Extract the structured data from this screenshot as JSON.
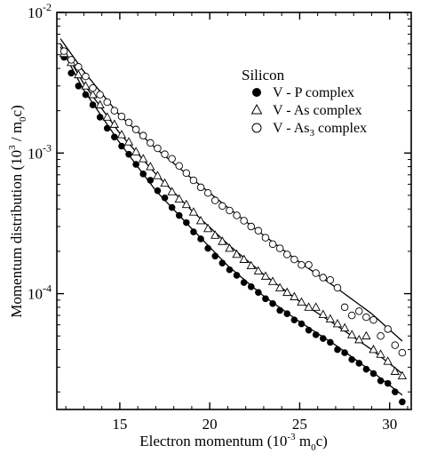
{
  "chart_data": {
    "type": "scatter",
    "xlabel": "Electron momentum (10",
    "xlabel_sup": "-3",
    "xlabel_tail": " m",
    "xlabel_sub": "0",
    "xlabel_end": "c)",
    "ylabel": "Momentum distribution (10",
    "ylabel_sup": "3",
    "ylabel_mid": " / m",
    "ylabel_sub": "0",
    "ylabel_end": "c)",
    "xlim": [
      11.5,
      31.2
    ],
    "ylim_log": [
      1.5e-05,
      0.01
    ],
    "yscale": "log",
    "x_ticks": [
      15,
      20,
      25,
      30
    ],
    "x_tick_labels": [
      "15",
      "20",
      "25",
      "30"
    ],
    "y_ticks": [
      0.01,
      0.001,
      0.0001
    ],
    "y_tick_base": "10",
    "y_tick_exps": [
      "-2",
      "-3",
      "-4"
    ],
    "grid": false,
    "legend_placement": "top-right",
    "legend_title": "Silicon",
    "series": [
      {
        "name": "V - P complex",
        "name_sub": "",
        "name_tail": "",
        "marker": "filled-circle",
        "x": [
          11.9,
          12.3,
          12.7,
          13.1,
          13.5,
          13.9,
          14.3,
          14.7,
          15.1,
          15.5,
          15.9,
          16.3,
          16.7,
          17.1,
          17.5,
          17.9,
          18.3,
          18.7,
          19.1,
          19.5,
          19.9,
          20.3,
          20.7,
          21.1,
          21.5,
          21.9,
          22.3,
          22.7,
          23.1,
          23.5,
          23.9,
          24.3,
          24.7,
          25.1,
          25.5,
          25.9,
          26.3,
          26.7,
          27.1,
          27.5,
          27.9,
          28.3,
          28.7,
          29.1,
          29.5,
          29.9,
          30.3,
          30.7
        ],
        "y": [
          0.0048,
          0.0037,
          0.003,
          0.0026,
          0.0022,
          0.0018,
          0.0015,
          0.0013,
          0.00112,
          0.00098,
          0.00083,
          0.00071,
          0.00064,
          0.00054,
          0.00048,
          0.00041,
          0.00036,
          0.00032,
          0.000275,
          0.000245,
          0.00021,
          0.000185,
          0.000165,
          0.000148,
          0.000135,
          0.00012,
          0.000112,
          0.000102,
          9.2e-05,
          8.5e-05,
          7.6e-05,
          7.2e-05,
          6.5e-05,
          6.1e-05,
          5.5e-05,
          5.1e-05,
          4.8e-05,
          4.5e-05,
          4e-05,
          3.8e-05,
          3.4e-05,
          3.2e-05,
          2.9e-05,
          2.7e-05,
          2.4e-05,
          2.3e-05,
          2e-05,
          1.7e-05
        ]
      },
      {
        "name": "V - As complex",
        "name_sub": "",
        "name_tail": "",
        "marker": "open-triangle",
        "x": [
          11.9,
          12.3,
          12.7,
          13.1,
          13.5,
          13.9,
          14.3,
          14.7,
          15.1,
          15.5,
          15.9,
          16.3,
          16.7,
          17.1,
          17.5,
          17.9,
          18.3,
          18.7,
          19.1,
          19.5,
          19.9,
          20.3,
          20.7,
          21.1,
          21.5,
          21.9,
          22.3,
          22.7,
          23.1,
          23.5,
          23.9,
          24.3,
          24.7,
          25.1,
          25.5,
          25.9,
          26.3,
          26.7,
          27.1,
          27.5,
          27.9,
          28.3,
          28.7,
          29.1,
          29.5,
          29.9,
          30.3,
          30.7
        ],
        "y": [
          0.0051,
          0.0044,
          0.0036,
          0.003,
          0.0026,
          0.0022,
          0.0018,
          0.0016,
          0.00135,
          0.0012,
          0.00102,
          0.00091,
          0.0008,
          0.00069,
          0.00061,
          0.00053,
          0.00047,
          0.00043,
          0.00038,
          0.00033,
          0.00029,
          0.00026,
          0.000235,
          0.00021,
          0.00019,
          0.000175,
          0.000158,
          0.000145,
          0.000133,
          0.000122,
          0.00011,
          0.000102,
          9.5e-05,
          8.7e-05,
          8e-05,
          8e-05,
          7.1e-05,
          6.6e-05,
          6.1e-05,
          5.7e-05,
          5.1e-05,
          4.7e-05,
          5e-05,
          4e-05,
          3.7e-05,
          3.3e-05,
          2.8e-05,
          2.6e-05
        ]
      },
      {
        "name": "V - As",
        "name_sub": "3",
        "name_tail": " complex",
        "marker": "open-circle",
        "x": [
          11.9,
          12.3,
          12.7,
          13.1,
          13.5,
          13.9,
          14.3,
          14.7,
          15.1,
          15.5,
          15.9,
          16.3,
          16.7,
          17.1,
          17.5,
          17.9,
          18.3,
          18.7,
          19.1,
          19.5,
          19.9,
          20.3,
          20.7,
          21.1,
          21.5,
          21.9,
          22.3,
          22.7,
          23.1,
          23.5,
          23.9,
          24.3,
          24.7,
          25.1,
          25.5,
          25.9,
          26.3,
          26.7,
          27.1,
          27.5,
          27.9,
          28.3,
          28.7,
          29.1,
          29.5,
          29.9,
          30.3,
          30.7
        ],
        "y": [
          0.0053,
          0.0046,
          0.0041,
          0.0035,
          0.0029,
          0.0026,
          0.0023,
          0.002,
          0.00182,
          0.00165,
          0.00147,
          0.00133,
          0.00118,
          0.00108,
          0.00098,
          0.00091,
          0.00081,
          0.00072,
          0.00064,
          0.00057,
          0.00052,
          0.00046,
          0.00042,
          0.00039,
          0.00036,
          0.00033,
          0.0003,
          0.00028,
          0.00025,
          0.000225,
          0.00021,
          0.00019,
          0.000175,
          0.00016,
          0.00016,
          0.00014,
          0.00013,
          0.000125,
          0.00011,
          8e-05,
          7e-05,
          7.5e-05,
          6.8e-05,
          6.5e-05,
          5e-05,
          5.6e-05,
          4.3e-05,
          3.8e-05
        ]
      }
    ],
    "fit_curves": [
      {
        "a": 0.0275,
        "b": 0.00067,
        "c": -5.4
      },
      {
        "a": 0.033,
        "b": 0.0007,
        "c": -5.2
      },
      {
        "a": 0.039,
        "b": 0.00052,
        "c": -4.8
      }
    ]
  }
}
